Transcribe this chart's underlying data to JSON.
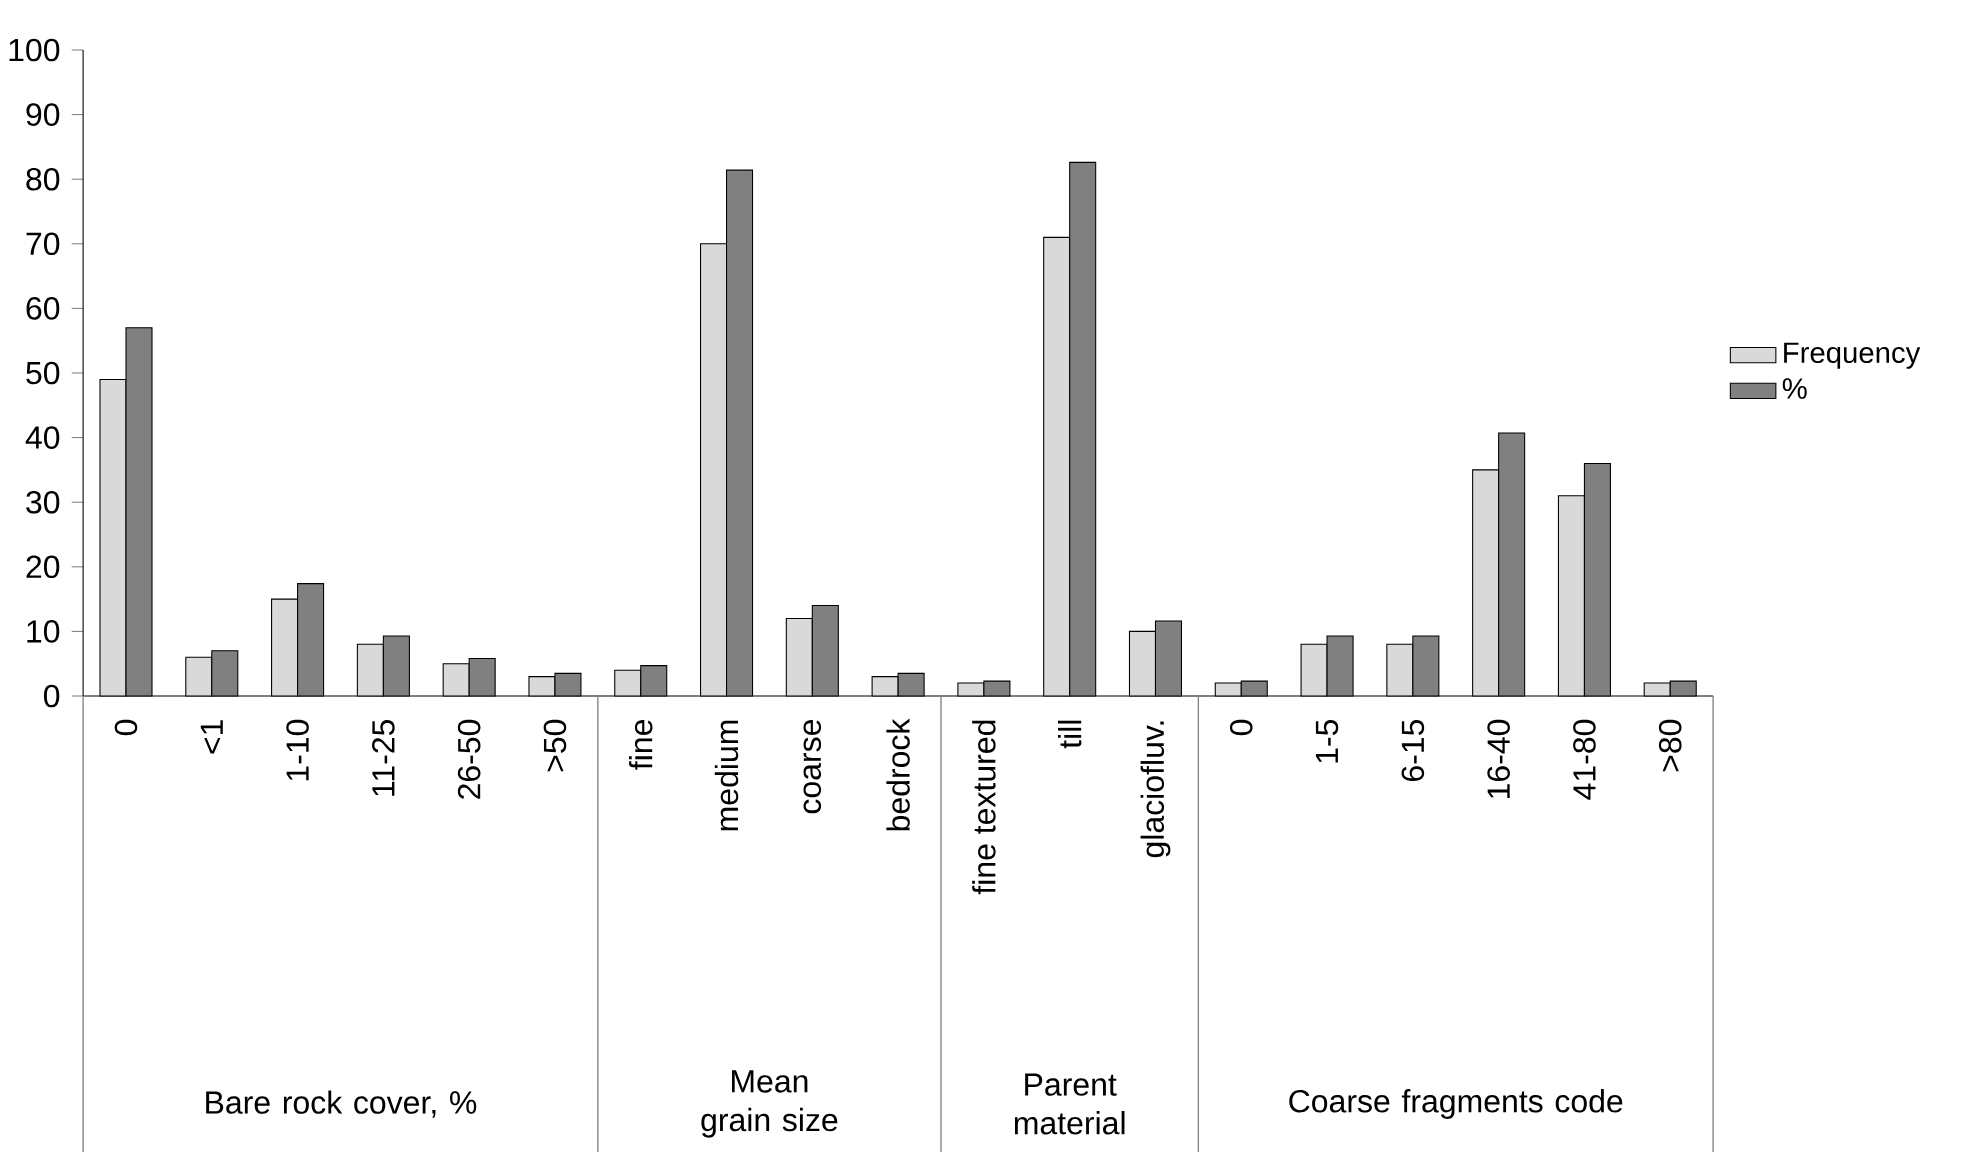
{
  "chart_data": {
    "type": "bar",
    "categories": [
      "0",
      "<1",
      "1-10",
      "11-25",
      "26-50",
      ">50",
      "fine",
      "medium",
      "coarse",
      "bedrock",
      "fine textured",
      "till",
      "glaciofluv.",
      "0",
      "1-5",
      "6-15",
      "16-40",
      "41-80",
      ">80"
    ],
    "series": [
      {
        "name": "Frequency",
        "color": "#d9d9d9",
        "values": [
          49,
          6,
          15,
          8,
          5,
          3,
          4,
          70,
          12,
          3,
          2,
          71,
          10,
          2,
          8,
          8,
          35,
          31,
          2
        ]
      },
      {
        "name": "%",
        "color": "#808080",
        "values": [
          57.0,
          7.0,
          17.4,
          9.3,
          5.8,
          3.5,
          4.7,
          81.4,
          14.0,
          3.5,
          2.3,
          82.6,
          11.6,
          2.3,
          9.3,
          9.3,
          40.7,
          36.0,
          2.3
        ]
      }
    ],
    "annotations": [
      "Bare rock cover, %",
      "Mean grain size",
      "Parent material",
      "Coarse fragments code"
    ],
    "ylim": [
      0,
      100
    ],
    "yticks": [
      0,
      10,
      20,
      30,
      40,
      50,
      60,
      70,
      80,
      90,
      100
    ],
    "grid": false,
    "legend": "right"
  }
}
